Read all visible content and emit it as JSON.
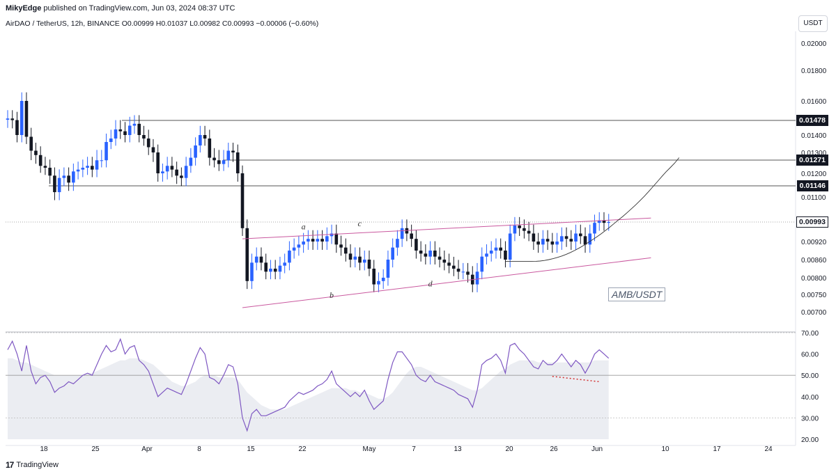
{
  "header": {
    "publisher": "MikyEdge",
    "published_text": "published on TradingView.com, Jun 03, 2024 08:37 UTC",
    "symbol_line": "AirDAO / TetherUS, 12h, BINANCE  O0.00999  H0.01037  L0.00982  C0.00993  −0.00006 (−0.60%)",
    "currency": "USDT"
  },
  "footer": {
    "brand": "TradingView",
    "logo_mark": "17"
  },
  "watermark": "AMB/USDT",
  "colors": {
    "up": "#2962ff",
    "down": "#131722",
    "channel": "#c9579e",
    "rsi": "#7e57c2",
    "divergence": "#d32f2f"
  },
  "price_labels": [
    {
      "id": "l1478",
      "text": "0.01478",
      "value": 0.01478,
      "style": "dark"
    },
    {
      "id": "l1271",
      "text": "0.01271",
      "value": 0.01271,
      "style": "dark"
    },
    {
      "id": "l1146",
      "text": "0.01146",
      "value": 0.01146,
      "style": "dark"
    },
    {
      "id": "l993",
      "text": "0.00993",
      "value": 0.00993,
      "style": "light"
    }
  ],
  "chart_data": [
    {
      "type": "candlestick",
      "title": "AirDAO / TetherUS, 12h, BINANCE",
      "ylim": [
        0.00655,
        0.0209
      ],
      "y_ticks": [
        {
          "label": "0.02000",
          "v": 0.02
        },
        {
          "label": "0.01800",
          "v": 0.018
        },
        {
          "label": "0.01600",
          "v": 0.016
        },
        {
          "label": "0.01500",
          "v": 0.015
        },
        {
          "label": "0.01400",
          "v": 0.014
        },
        {
          "label": "0.01300",
          "v": 0.013
        },
        {
          "label": "0.01200",
          "v": 0.012
        },
        {
          "label": "0.01100",
          "v": 0.011
        },
        {
          "label": "0.00920",
          "v": 0.0092
        },
        {
          "label": "0.00860",
          "v": 0.0086
        },
        {
          "label": "0.00800",
          "v": 0.008
        },
        {
          "label": "0.00750",
          "v": 0.0075
        },
        {
          "label": "0.00700",
          "v": 0.007
        }
      ],
      "x_ticks": [
        "18",
        "25",
        "Apr",
        "8",
        "15",
        "22",
        "May",
        "7",
        "13",
        "20",
        "26",
        "Jun",
        "10",
        "17",
        "24"
      ],
      "horizontal_levels": [
        0.01478,
        0.01271,
        0.01146
      ],
      "current_price": 0.00993,
      "closes": [
        0.0149,
        0.0148,
        0.014,
        0.016,
        0.0139,
        0.0131,
        0.0129,
        0.0124,
        0.0123,
        0.0119,
        0.0112,
        0.0118,
        0.0119,
        0.0116,
        0.0121,
        0.0122,
        0.0123,
        0.0124,
        0.0122,
        0.0127,
        0.0127,
        0.0136,
        0.0138,
        0.0143,
        0.0142,
        0.014,
        0.0145,
        0.0146,
        0.014,
        0.0138,
        0.0133,
        0.013,
        0.012,
        0.0121,
        0.0124,
        0.0122,
        0.0119,
        0.0118,
        0.0124,
        0.0128,
        0.0134,
        0.014,
        0.0138,
        0.0128,
        0.0127,
        0.0125,
        0.0127,
        0.0131,
        0.013,
        0.012,
        0.0097,
        0.0079,
        0.0085,
        0.0087,
        0.0085,
        0.0082,
        0.0083,
        0.0082,
        0.0084,
        0.0085,
        0.0089,
        0.009,
        0.0091,
        0.0092,
        0.0093,
        0.0092,
        0.0093,
        0.0092,
        0.0094,
        0.0095,
        0.0091,
        0.009,
        0.0088,
        0.0086,
        0.0087,
        0.0085,
        0.0086,
        0.0083,
        0.0078,
        0.0079,
        0.008,
        0.0086,
        0.009,
        0.0093,
        0.0097,
        0.0095,
        0.0093,
        0.0089,
        0.0088,
        0.0087,
        0.0089,
        0.0087,
        0.0086,
        0.0085,
        0.0084,
        0.0083,
        0.0082,
        0.0082,
        0.0081,
        0.0078,
        0.0082,
        0.0087,
        0.0088,
        0.0089,
        0.009,
        0.0089,
        0.0086,
        0.0095,
        0.0098,
        0.0097,
        0.0096,
        0.0095,
        0.0092,
        0.0091,
        0.0093,
        0.0092,
        0.0091,
        0.0092,
        0.0094,
        0.0093,
        0.0092,
        0.0095,
        0.0094,
        0.0091,
        0.0095,
        0.0099,
        0.01,
        0.0099,
        0.00993
      ],
      "annotations": [
        {
          "label": "a",
          "x_index": 63,
          "y": 0.00965
        },
        {
          "label": "b",
          "x_index": 69,
          "y": 0.0074
        },
        {
          "label": "c",
          "x_index": 75,
          "y": 0.00978
        },
        {
          "label": "d",
          "x_index": 90,
          "y": 0.00774
        }
      ]
    },
    {
      "type": "line",
      "title": "RSI",
      "ylim": [
        20,
        70
      ],
      "y_ticks": [
        {
          "label": "70.00",
          "v": 70
        },
        {
          "label": "60.00",
          "v": 60
        },
        {
          "label": "50.00",
          "v": 50
        },
        {
          "label": "40.00",
          "v": 40
        },
        {
          "label": "30.00",
          "v": 30
        },
        {
          "label": "20.00",
          "v": 20
        }
      ],
      "reference_lines": [
        70,
        50,
        30
      ],
      "rsi": [
        62,
        66,
        60,
        52,
        64,
        52,
        46,
        49,
        50,
        47,
        42,
        44,
        45,
        47,
        46,
        48,
        50,
        51,
        50,
        55,
        60,
        64,
        61,
        62,
        67,
        60,
        63,
        64,
        57,
        55,
        52,
        46,
        40,
        42,
        44,
        43,
        42,
        41,
        46,
        52,
        58,
        63,
        60,
        49,
        48,
        46,
        50,
        55,
        54,
        46,
        30,
        24,
        32,
        34,
        31,
        31,
        32,
        33,
        34,
        35,
        38,
        40,
        42,
        41,
        42,
        43,
        45,
        46,
        48,
        52,
        46,
        44,
        42,
        40,
        42,
        40,
        43,
        38,
        34,
        36,
        38,
        48,
        56,
        61,
        61,
        58,
        55,
        50,
        48,
        47,
        50,
        47,
        46,
        45,
        44,
        43,
        41,
        40,
        39,
        35,
        43,
        55,
        57,
        58,
        60,
        57,
        51,
        64,
        65,
        62,
        60,
        57,
        54,
        53,
        57,
        55,
        55,
        57,
        60,
        57,
        54,
        57,
        55,
        51,
        55,
        60,
        62,
        60,
        58
      ],
      "rsi_ma": [
        58,
        58,
        57,
        56,
        56,
        55,
        54,
        53,
        52,
        51,
        50,
        50,
        50,
        50,
        50,
        50,
        50,
        51,
        51,
        52,
        53,
        54,
        55,
        56,
        57,
        57,
        58,
        58,
        58,
        57,
        56,
        55,
        53,
        51,
        49,
        47,
        46,
        45,
        45,
        46,
        47,
        49,
        50,
        50,
        50,
        49,
        49,
        49,
        49,
        48,
        45,
        42,
        40,
        38,
        36,
        35,
        34,
        34,
        34,
        34,
        35,
        36,
        37,
        38,
        39,
        40,
        41,
        42,
        43,
        44,
        44,
        44,
        44,
        43,
        43,
        42,
        42,
        41,
        40,
        39,
        39,
        40,
        42,
        45,
        48,
        51,
        53,
        54,
        54,
        53,
        52,
        51,
        50,
        49,
        48,
        47,
        46,
        45,
        44,
        43,
        43,
        44,
        46,
        48,
        50,
        52,
        53,
        55,
        56,
        57,
        57,
        57,
        57,
        56,
        56,
        56,
        56,
        56,
        56,
        56,
        56,
        56,
        56,
        56,
        56,
        57,
        57,
        57,
        57
      ]
    }
  ]
}
